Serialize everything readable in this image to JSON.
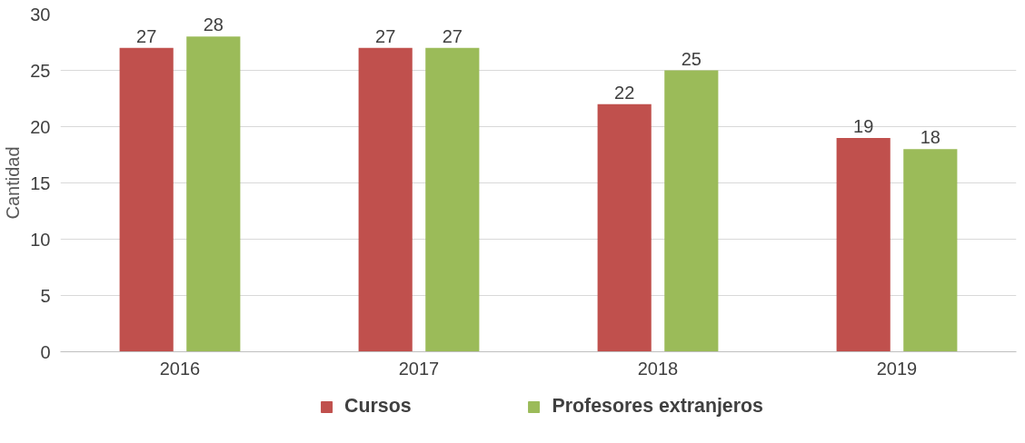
{
  "chart_data": {
    "type": "bar",
    "ylabel": "Cantidad",
    "categories": [
      "2016",
      "2017",
      "2018",
      "2019"
    ],
    "series": [
      {
        "name": "Cursos",
        "color": "#c0504d",
        "values": [
          27,
          27,
          22,
          19
        ]
      },
      {
        "name": "Profesores extranjeros",
        "color": "#9bbb59",
        "values": [
          28,
          27,
          25,
          18
        ]
      }
    ],
    "ylim": [
      0,
      30
    ],
    "yticks": [
      0,
      5,
      10,
      15,
      20,
      25,
      30
    ],
    "grid": "y",
    "data_labels": true,
    "legend": "bottom"
  }
}
